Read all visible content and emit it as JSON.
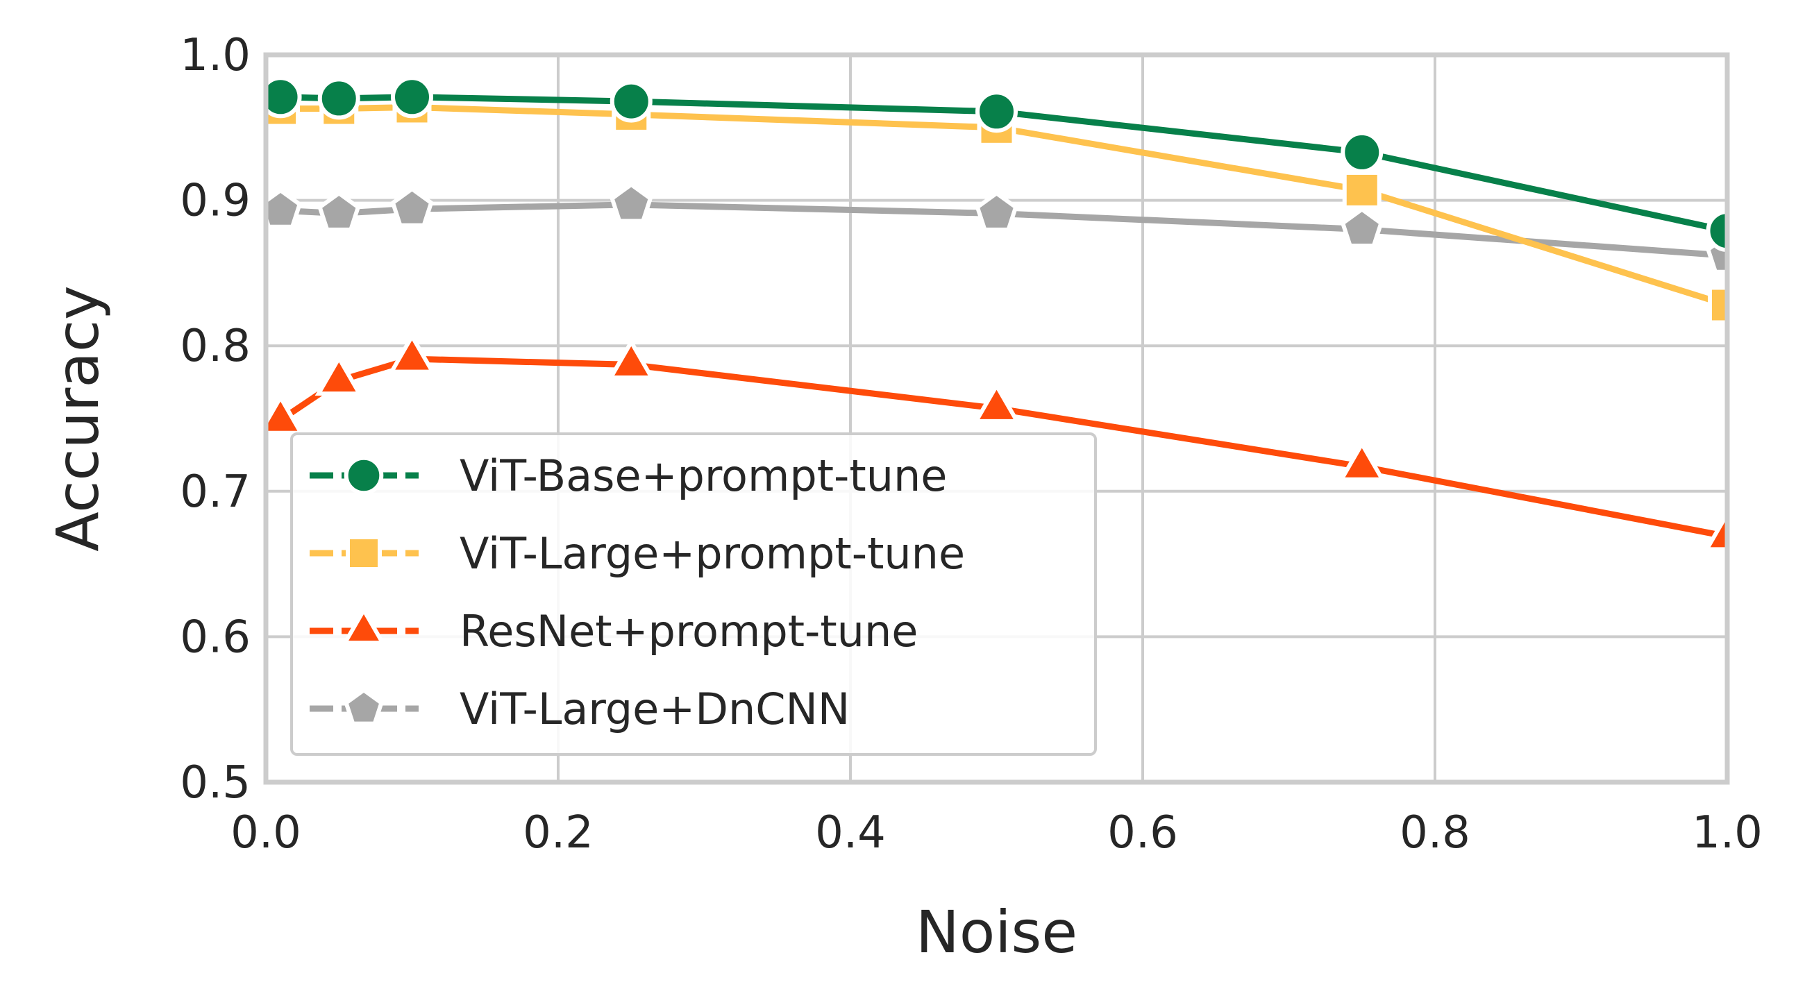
{
  "chart_data": {
    "type": "line",
    "title": "",
    "xlabel": "Noise",
    "ylabel": "Accuracy",
    "xlim": [
      0.0,
      1.0
    ],
    "ylim": [
      0.5,
      1.0
    ],
    "x_ticks": [
      "0.0",
      "0.2",
      "0.4",
      "0.6",
      "0.8",
      "1.0"
    ],
    "y_ticks": [
      "0.5",
      "0.6",
      "0.7",
      "0.8",
      "0.9",
      "1.0"
    ],
    "grid": true,
    "legend_position": "lower-left",
    "series": [
      {
        "name": "ViT-Base+prompt-tune",
        "color": "#07804a",
        "marker": "circle",
        "x": [
          0.01,
          0.05,
          0.1,
          0.25,
          0.5,
          0.75,
          1.0
        ],
        "values": [
          0.971,
          0.97,
          0.971,
          0.968,
          0.961,
          0.933,
          0.879
        ]
      },
      {
        "name": "ViT-Large+prompt-tune",
        "color": "#fec24e",
        "marker": "square",
        "x": [
          0.01,
          0.05,
          0.1,
          0.25,
          0.5,
          0.75,
          1.0
        ],
        "values": [
          0.963,
          0.963,
          0.964,
          0.959,
          0.95,
          0.907,
          0.828
        ]
      },
      {
        "name": "ResNet+prompt-tune",
        "color": "#fe4b0a",
        "marker": "triangle",
        "x": [
          0.01,
          0.05,
          0.1,
          0.25,
          0.5,
          0.75,
          1.0
        ],
        "values": [
          0.749,
          0.776,
          0.791,
          0.787,
          0.757,
          0.717,
          0.669
        ]
      },
      {
        "name": "ViT-Large+DnCNN",
        "color": "#a6a6a6",
        "marker": "pentagon",
        "x": [
          0.01,
          0.05,
          0.1,
          0.25,
          0.5,
          0.75,
          1.0
        ],
        "values": [
          0.893,
          0.891,
          0.894,
          0.897,
          0.891,
          0.88,
          0.862
        ]
      }
    ]
  }
}
